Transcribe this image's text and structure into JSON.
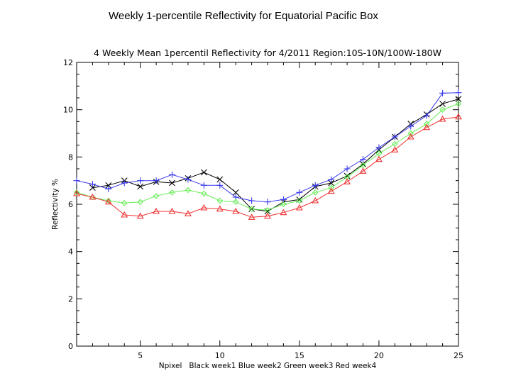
{
  "slide": {
    "title": "Weekly 1-percentile Reflectivity for Equatorial Pacific Box"
  },
  "chart_data": {
    "type": "line",
    "title": "4 Weekly Mean 1percentil Reflectivity for 4/2011 Region:10S-10N/100W-180W",
    "xlabel": "Npixel   Black week1 Blue week2 Green week3 Red week4",
    "ylabel": "Reflectivity %",
    "xlim": [
      1,
      25
    ],
    "ylim": [
      0,
      12
    ],
    "xticks": [
      5,
      10,
      15,
      20,
      25
    ],
    "yticks": [
      0,
      2,
      4,
      6,
      8,
      10,
      12
    ],
    "grid": false,
    "series": [
      {
        "color": "#000000",
        "marker": "x",
        "x": [
          2,
          3,
          4,
          5,
          6,
          7,
          8,
          9,
          10,
          11,
          12,
          13,
          14,
          15,
          16,
          17,
          18,
          19,
          20,
          21,
          22,
          23,
          24,
          25
        ],
        "values": [
          6.7,
          6.8,
          7.0,
          6.75,
          6.95,
          6.9,
          7.1,
          7.35,
          7.05,
          6.5,
          5.8,
          5.7,
          6.1,
          6.2,
          6.75,
          6.9,
          7.2,
          7.7,
          8.3,
          8.85,
          9.4,
          9.8,
          10.25,
          10.45
        ]
      },
      {
        "color": "#3a3af0",
        "marker": "+",
        "x": [
          1,
          2,
          3,
          4,
          5,
          6,
          7,
          8,
          9,
          10,
          11,
          12,
          13,
          14,
          15,
          16,
          17,
          18,
          19,
          20,
          21,
          22,
          23,
          24,
          25
        ],
        "values": [
          7.0,
          6.85,
          6.65,
          6.9,
          7.0,
          7.0,
          7.25,
          7.05,
          6.8,
          6.8,
          6.3,
          6.15,
          6.1,
          6.2,
          6.5,
          6.8,
          7.05,
          7.5,
          7.9,
          8.4,
          8.85,
          9.3,
          9.75,
          10.7,
          10.72
        ]
      },
      {
        "color": "#66ee55",
        "marker": "diamond",
        "x": [
          1,
          2,
          3,
          4,
          5,
          6,
          7,
          8,
          9,
          10,
          11,
          12,
          13,
          14,
          15,
          16,
          17,
          18,
          19,
          20,
          21,
          22,
          23,
          24,
          25
        ],
        "values": [
          6.5,
          6.3,
          6.15,
          6.05,
          6.1,
          6.35,
          6.5,
          6.6,
          6.45,
          6.15,
          6.1,
          5.8,
          5.75,
          6.0,
          6.15,
          6.5,
          6.7,
          7.15,
          7.65,
          8.15,
          8.55,
          9.0,
          9.4,
          10.0,
          10.25
        ]
      },
      {
        "color": "#ee3333",
        "marker": "triangle",
        "x": [
          1,
          2,
          3,
          4,
          5,
          6,
          7,
          8,
          9,
          10,
          11,
          12,
          13,
          14,
          15,
          16,
          17,
          18,
          19,
          20,
          21,
          22,
          23,
          24,
          25
        ],
        "values": [
          6.45,
          6.3,
          6.1,
          5.55,
          5.5,
          5.7,
          5.7,
          5.6,
          5.85,
          5.8,
          5.7,
          5.45,
          5.5,
          5.65,
          5.85,
          6.15,
          6.55,
          6.95,
          7.4,
          7.9,
          8.3,
          8.85,
          9.25,
          9.6,
          9.7
        ]
      }
    ]
  }
}
